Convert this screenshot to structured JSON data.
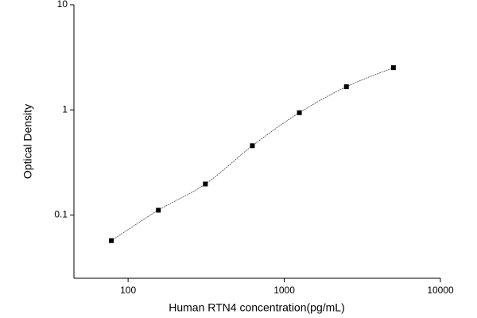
{
  "chart_data": {
    "type": "scatter",
    "x_label": "Human RTN4 concentration(pg/mL)",
    "y_label": "Optical Density",
    "x": [
      78.125,
      156.25,
      312.5,
      625,
      1250,
      2500,
      5000
    ],
    "series": [
      {
        "color": "#000000",
        "values": [
          0.057,
          0.111,
          0.197,
          0.456,
          0.94,
          1.66,
          2.52
        ]
      }
    ],
    "xlim": [
      45,
      10000
    ],
    "xticks": [
      100,
      1000,
      10000
    ],
    "ylim": [
      0.025,
      10
    ],
    "yticks": [
      0.1,
      1,
      10
    ],
    "xscale": "log",
    "yscale": "log",
    "grid": false
  }
}
